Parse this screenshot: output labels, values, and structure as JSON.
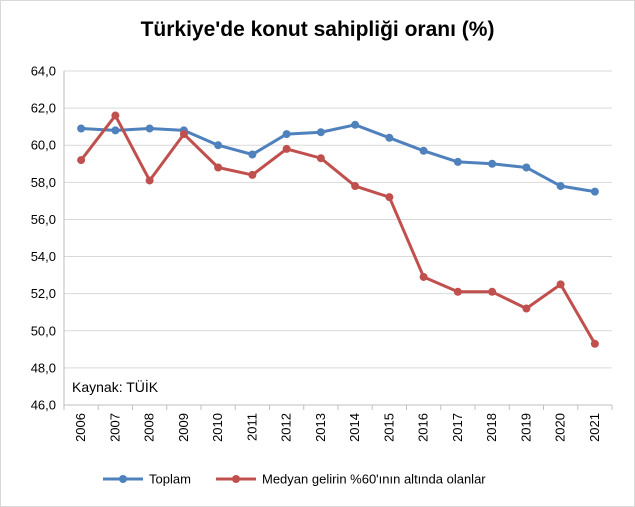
{
  "chart_data": {
    "type": "line",
    "title": "Türkiye'de konut sahipliği oranı (%)",
    "xlabel": "",
    "ylabel": "",
    "categories": [
      "2006",
      "2007",
      "2008",
      "2009",
      "2010",
      "2011",
      "2012",
      "2013",
      "2014",
      "2015",
      "2016",
      "2017",
      "2018",
      "2019",
      "2020",
      "2021"
    ],
    "ylim": [
      46,
      64
    ],
    "ytick_step": 2,
    "ytick_labels": [
      "46,0",
      "48,0",
      "50,0",
      "52,0",
      "54,0",
      "56,0",
      "58,0",
      "60,0",
      "62,0",
      "64,0"
    ],
    "grid": true,
    "legend_position": "bottom",
    "annotation": "Kaynak: TÜİK",
    "series": [
      {
        "name": "Toplam",
        "color": "#4f81bd",
        "values": [
          60.9,
          60.8,
          60.9,
          60.8,
          60.0,
          59.5,
          60.6,
          60.7,
          61.1,
          60.4,
          59.7,
          59.1,
          59.0,
          58.8,
          57.8,
          57.5
        ]
      },
      {
        "name": "Medyan gelirin %60'ının altında olanlar",
        "color": "#c0504d",
        "values": [
          59.2,
          61.6,
          58.1,
          60.6,
          58.8,
          58.4,
          59.8,
          59.3,
          57.8,
          57.2,
          52.9,
          52.1,
          52.1,
          51.2,
          52.5,
          49.3
        ]
      }
    ]
  }
}
